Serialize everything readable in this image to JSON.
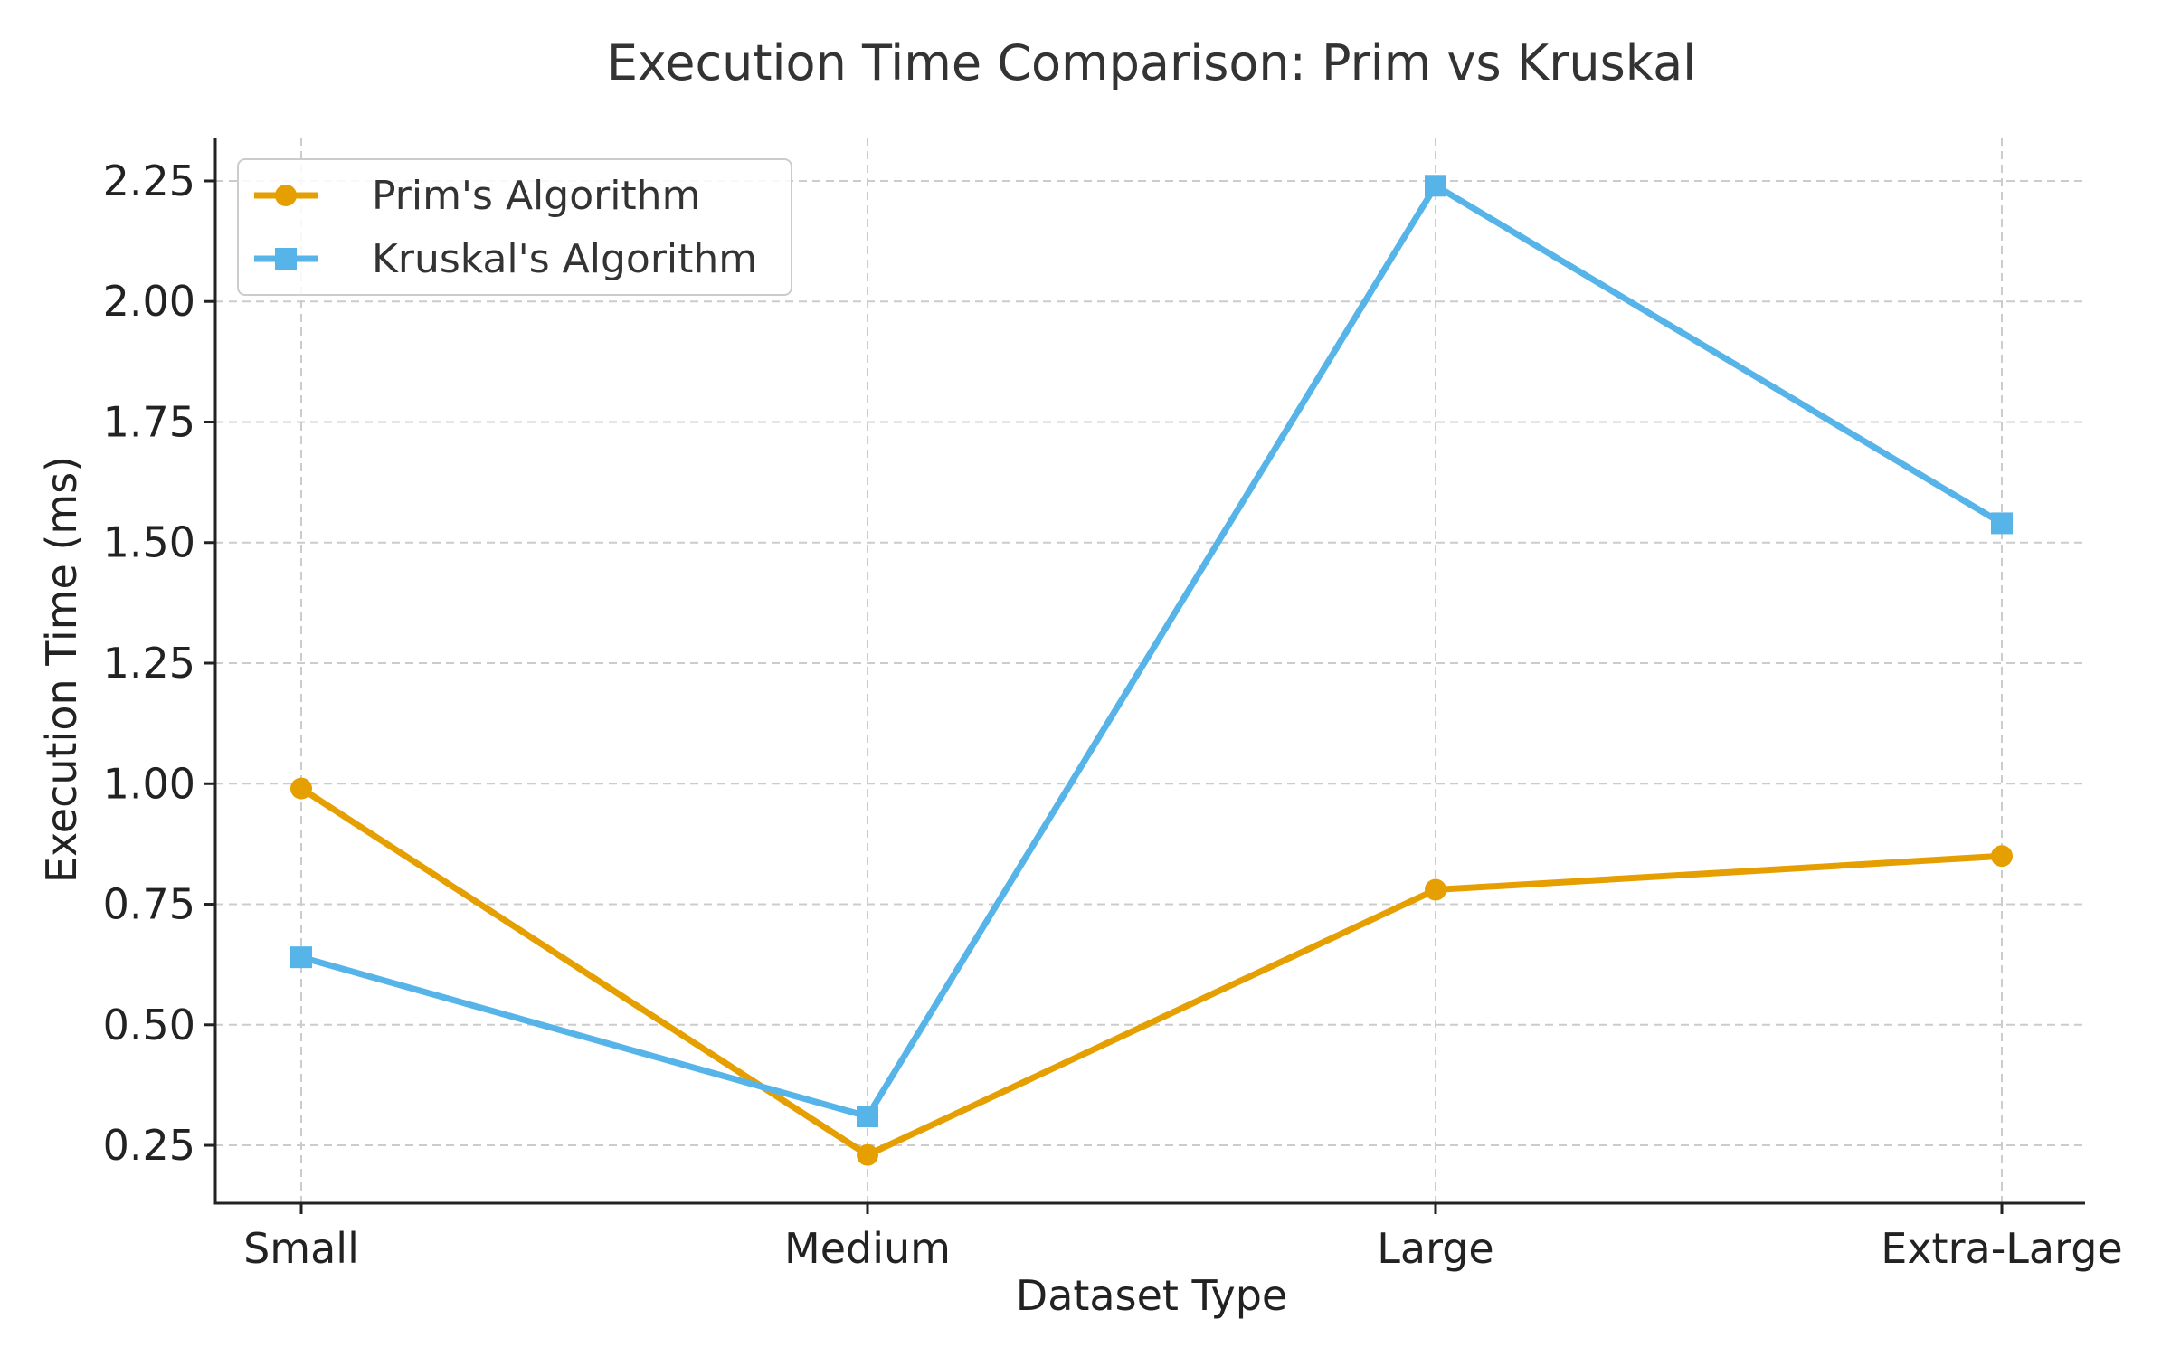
{
  "chart_data": {
    "type": "line",
    "title": "Execution Time Comparison: Prim vs Kruskal",
    "xlabel": "Dataset Type",
    "ylabel": "Execution Time (ms)",
    "categories": [
      "Small",
      "Medium",
      "Large",
      "Extra-Large"
    ],
    "ylim": [
      0.13,
      2.34
    ],
    "yticks": [
      0.25,
      0.5,
      0.75,
      1.0,
      1.25,
      1.5,
      1.75,
      2.0,
      2.25
    ],
    "ytick_labels": [
      "0.25",
      "0.50",
      "0.75",
      "1.00",
      "1.25",
      "1.50",
      "1.75",
      "2.00",
      "2.25"
    ],
    "grid": true,
    "legend_position": "top-left",
    "series": [
      {
        "name": "Prim's Algorithm",
        "values": [
          0.99,
          0.23,
          0.78,
          0.85
        ],
        "color": "#E69F00",
        "marker": "circle"
      },
      {
        "name": "Kruskal's Algorithm",
        "values": [
          0.64,
          0.31,
          2.24,
          1.54
        ],
        "color": "#56B4E9",
        "marker": "square"
      }
    ]
  }
}
